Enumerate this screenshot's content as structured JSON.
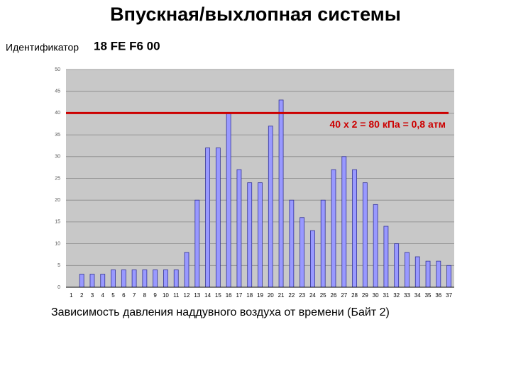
{
  "slide": {
    "title": "Впускная/выхлопная системы",
    "id_label": "Идентификатор",
    "id_value": "18 FE F6 00"
  },
  "chart_data": {
    "type": "bar",
    "caption": "Зависимость давления наддувного воздуха от времени (Байт 2)",
    "categories": [
      "1",
      "2",
      "3",
      "4",
      "5",
      "6",
      "7",
      "8",
      "9",
      "10",
      "11",
      "12",
      "13",
      "14",
      "15",
      "16",
      "17",
      "18",
      "19",
      "20",
      "21",
      "22",
      "23",
      "24",
      "25",
      "26",
      "27",
      "28",
      "29",
      "30",
      "31",
      "32",
      "33",
      "34",
      "35",
      "36",
      "37"
    ],
    "values": [
      0,
      3,
      3,
      3,
      4,
      4,
      4,
      4,
      4,
      4,
      4,
      8,
      20,
      32,
      32,
      40,
      27,
      24,
      24,
      37,
      43,
      20,
      16,
      13,
      20,
      27,
      30,
      27,
      24,
      19,
      14,
      10,
      8,
      7,
      6,
      6,
      5
    ],
    "color": "#9999ff",
    "ylim": [
      0,
      50
    ],
    "yticks": [
      0,
      5,
      10,
      15,
      20,
      25,
      30,
      35,
      40,
      45,
      50
    ],
    "grid": true,
    "reference_line": {
      "value": 40,
      "label": "40 х 2 = 80 кПа = 0,8 атм",
      "color": "#cc0000"
    }
  }
}
